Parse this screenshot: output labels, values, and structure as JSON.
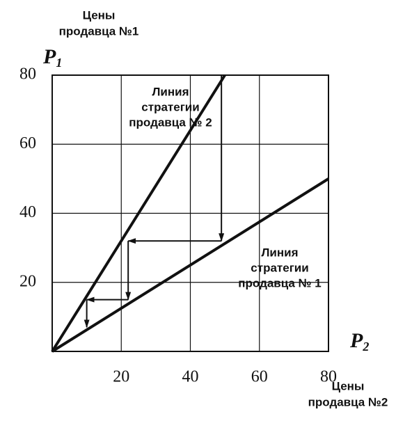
{
  "chart_data": {
    "type": "line",
    "y_label": [
      "Цены",
      "продавца №1"
    ],
    "x_label": [
      "Цены",
      "продавца №2"
    ],
    "y_symbol": "P",
    "y_symbol_sub": "1",
    "x_symbol": "P",
    "x_symbol_sub": "2",
    "xlim": [
      0,
      80
    ],
    "ylim": [
      0,
      80
    ],
    "xticks": [
      20,
      40,
      60,
      80
    ],
    "yticks": [
      20,
      40,
      60,
      80
    ],
    "grid": true,
    "series": [
      {
        "x": [
          0,
          50
        ],
        "values": [
          0,
          80
        ],
        "color": "#111111",
        "annotation": [
          "Линия",
          "стратегии",
          "продавца № 2"
        ]
      },
      {
        "x": [
          0,
          80
        ],
        "values": [
          0,
          50
        ],
        "color": "#111111",
        "annotation": [
          "Линия",
          "стратегии",
          "продавца № 1"
        ]
      }
    ],
    "adjustment_path": {
      "x": [
        49,
        49,
        22,
        22,
        10,
        10
      ],
      "y": [
        80,
        32,
        32,
        15,
        15,
        7
      ],
      "color": "#111111"
    }
  }
}
